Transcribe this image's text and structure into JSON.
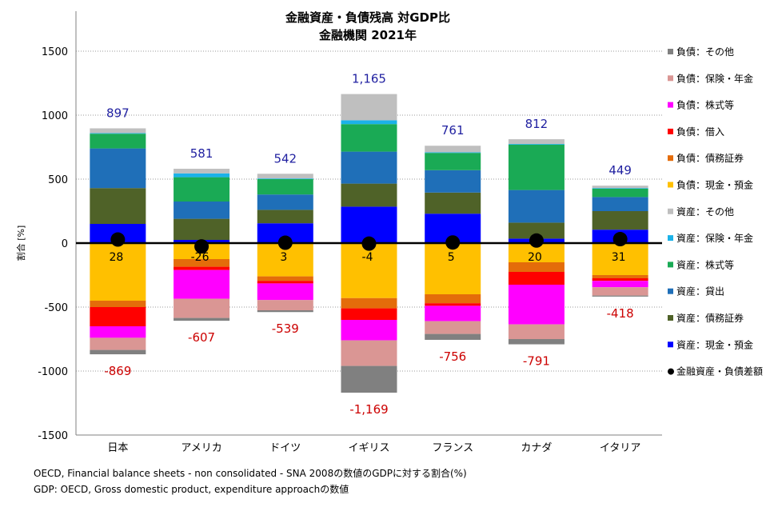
{
  "chart_data": {
    "type": "bar",
    "stacked": true,
    "title": "金融資産・負債残高 対GDP比",
    "subtitle": "金融機関 2021年",
    "ylabel": "割合 [%]",
    "ylim": [
      -1500,
      1500
    ],
    "yticks": [
      -1500,
      -1000,
      -500,
      0,
      500,
      1000,
      1500
    ],
    "ytick_labels": [
      "-1500",
      "-1000",
      "-500",
      "0",
      "500",
      "1000",
      "1500"
    ],
    "grid": true,
    "legend_position": "right",
    "categories": [
      "日本",
      "アメリカ",
      "ドイツ",
      "イギリス",
      "フランス",
      "カナダ",
      "イタリア"
    ],
    "series": [
      {
        "name": "資産：現金・預金",
        "color": "#0000FF",
        "values": [
          150,
          25,
          155,
          285,
          230,
          35,
          105
        ]
      },
      {
        "name": "資産：債務証券",
        "color": "#4F6228",
        "values": [
          280,
          165,
          105,
          180,
          165,
          125,
          145
        ]
      },
      {
        "name": "資産：貸出",
        "color": "#1F6FB8",
        "values": [
          310,
          135,
          120,
          250,
          175,
          255,
          110
        ]
      },
      {
        "name": "資産：株式等",
        "color": "#1AAA55",
        "values": [
          115,
          190,
          120,
          215,
          135,
          355,
          65
        ]
      },
      {
        "name": "資産：保険・年金",
        "color": "#1BB2E8",
        "values": [
          5,
          30,
          5,
          30,
          5,
          5,
          5
        ]
      },
      {
        "name": "資産：その他",
        "color": "#BFBFBF",
        "values": [
          37,
          36,
          37,
          205,
          51,
          37,
          19
        ]
      },
      {
        "name": "負債：現金・預金",
        "color": "#FFC000",
        "values": [
          -450,
          -125,
          -260,
          -430,
          -400,
          -150,
          -250
        ]
      },
      {
        "name": "負債：債務証券",
        "color": "#E46C0A",
        "values": [
          -50,
          -60,
          -35,
          -80,
          -70,
          -75,
          -25
        ]
      },
      {
        "name": "負債：借入",
        "color": "#FF0000",
        "values": [
          -150,
          -25,
          -20,
          -90,
          -20,
          -100,
          -20
        ]
      },
      {
        "name": "負債：株式等",
        "color": "#FF00FF",
        "values": [
          -90,
          -225,
          -130,
          -160,
          -120,
          -310,
          -50
        ]
      },
      {
        "name": "負債：保険・年金",
        "color": "#DA9694",
        "values": [
          -95,
          -150,
          -80,
          -200,
          -100,
          -115,
          -65
        ]
      },
      {
        "name": "負債：その他",
        "color": "#808080",
        "values": [
          -34,
          -22,
          -14,
          -209,
          -46,
          -41,
          -8
        ]
      }
    ],
    "net": {
      "name": "金融資産・負債差額",
      "values": [
        28,
        -26,
        3,
        -4,
        5,
        20,
        31
      ],
      "labels": [
        "28",
        "-26",
        "3",
        "-4",
        "5",
        "20",
        "31"
      ]
    },
    "asset_totals": {
      "values": [
        897,
        581,
        542,
        1165,
        761,
        812,
        449
      ],
      "labels": [
        "897",
        "581",
        "542",
        "1,165",
        "761",
        "812",
        "449"
      ],
      "color": "#1F1FA0"
    },
    "liability_totals": {
      "values": [
        -869,
        -607,
        -539,
        -1169,
        -756,
        -791,
        -418
      ],
      "labels": [
        "-869",
        "-607",
        "-539",
        "-1,169",
        "-756",
        "-791",
        "-418"
      ],
      "color": "#CC0000"
    },
    "legend_order": [
      11,
      10,
      9,
      8,
      7,
      6,
      5,
      4,
      3,
      2,
      1,
      0,
      "net"
    ]
  },
  "footnotes": {
    "line1": "OECD, Financial balance sheets -  non consolidated - SNA 2008の数値のGDPに対する割合(%)",
    "line2": "GDP: OECD, Gross domestic product, expenditure approachの数値"
  }
}
